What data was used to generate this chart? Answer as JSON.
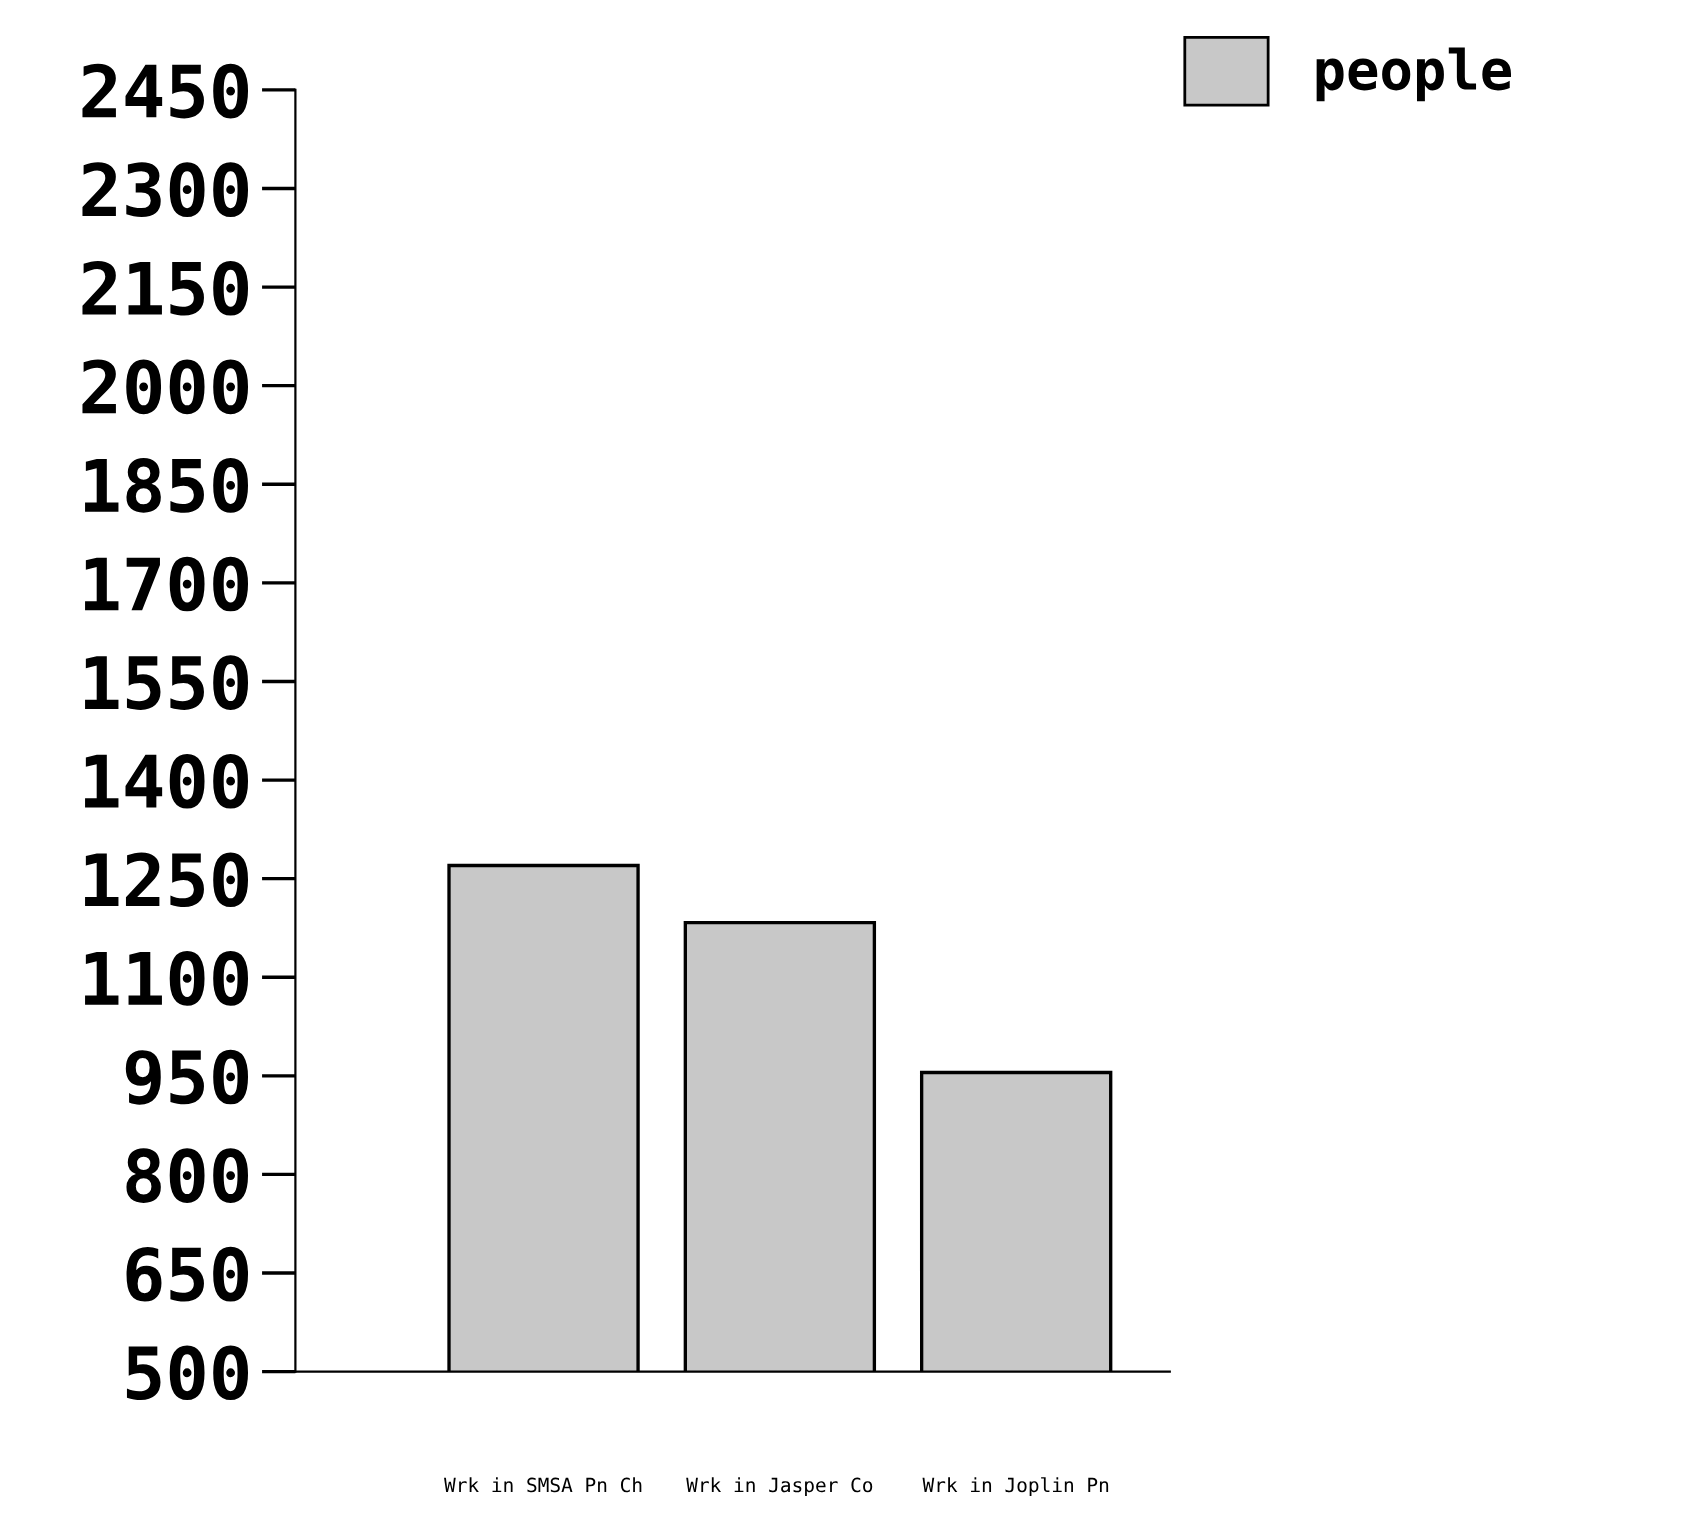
{
  "chart_data": {
    "type": "bar",
    "categories": [
      "Wrk in SMSA Pn Ch",
      "Wrk in Jasper Co",
      "Wrk in Joplin Pn"
    ],
    "series": [
      {
        "name": "people",
        "color": "#c8c8c8",
        "values": [
          1270,
          1183,
          955
        ]
      }
    ],
    "ylim": [
      500,
      2450
    ],
    "yticks": [
      500,
      650,
      800,
      950,
      1100,
      1250,
      1400,
      1550,
      1700,
      1850,
      2000,
      2150,
      2300,
      2450
    ],
    "grid": false,
    "legend": "top right"
  }
}
